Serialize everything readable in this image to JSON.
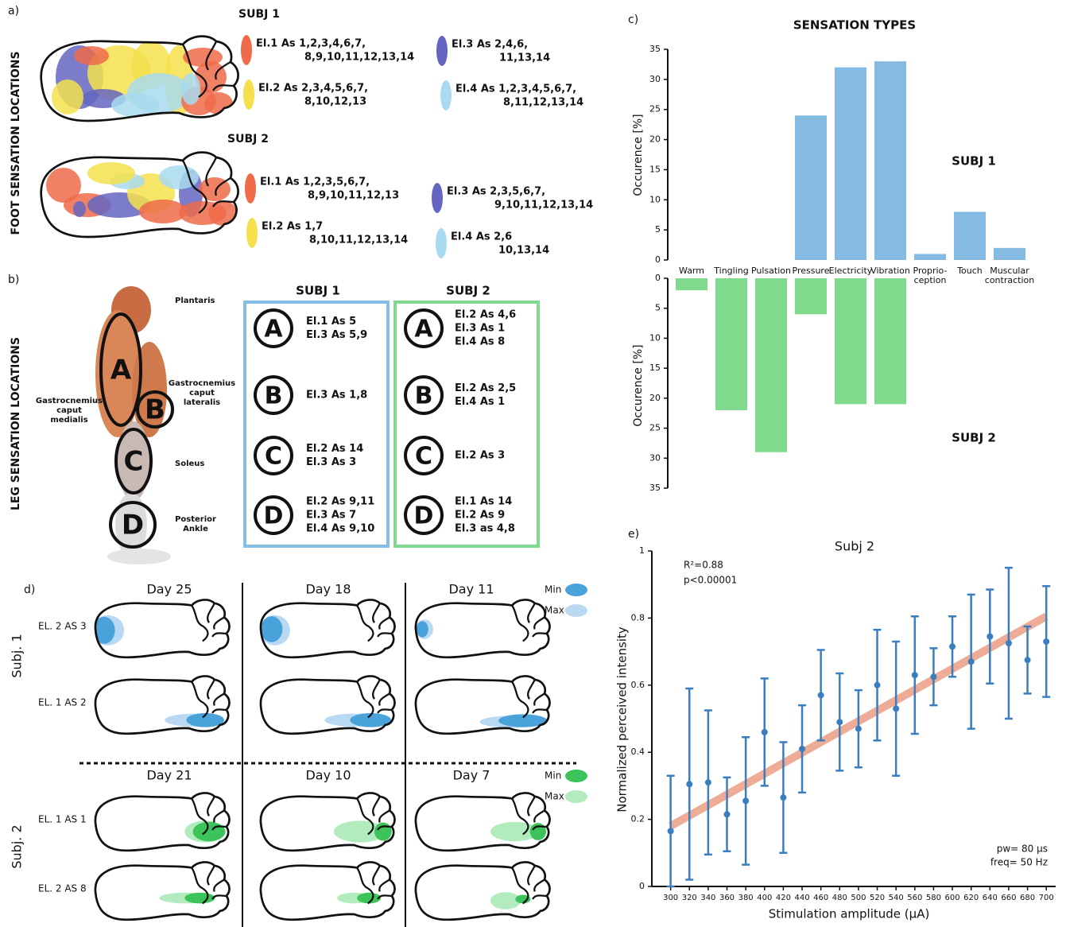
{
  "panel_a": {
    "label": "a)",
    "title": "FOOT SENSATION LOCATIONS",
    "subjects": [
      {
        "name": "SUBJ 1",
        "electrodes": [
          [
            "El.1 As 1,2,3,4,6,7,",
            "8,9,10,11,12,13,14"
          ],
          [
            "El.2 As 2,3,4,5,6,7,",
            "8,10,12,13"
          ],
          [
            "El.3 As 2,4,6,",
            "11,13,14"
          ],
          [
            "El.4 As 1,2,3,4,5,6,7,",
            "8,11,12,13,14"
          ]
        ]
      },
      {
        "name": "SUBJ 2",
        "electrodes": [
          [
            "El.1 As 1,2,3,5,6,7,",
            "8,9,10,11,12,13"
          ],
          [
            "El.2 As 1,7",
            "8,10,11,12,13,14"
          ],
          [
            "El.3 As 2,3,5,6,7,",
            "9,10,11,12,13,14"
          ],
          [
            "El.4 As 2,6",
            "10,13,14"
          ]
        ]
      }
    ]
  },
  "panel_b": {
    "label": "b)",
    "title": "LEG SENSATION LOCATIONS",
    "muscles": [
      [
        "Plantaris"
      ],
      [
        "Gastrocnemius",
        "caput",
        "medialis"
      ],
      [
        "Gastrocnemius",
        "caput",
        "lateralis"
      ],
      [
        "Soleus"
      ],
      [
        "Posterior",
        "Ankle"
      ]
    ],
    "regions": [
      "A",
      "B",
      "C",
      "D"
    ],
    "subjects": [
      {
        "name": "SUBJ 1",
        "regions": [
          {
            "letter": "A",
            "lines": [
              "El.1 As 5",
              "El.3 As 5,9"
            ]
          },
          {
            "letter": "B",
            "lines": [
              "El.3 As 1,8"
            ]
          },
          {
            "letter": "C",
            "lines": [
              "El.2 As 14",
              "El.3 As 3"
            ]
          },
          {
            "letter": "D",
            "lines": [
              "El.2 As 9,11",
              "El.3 As 7",
              "El.4 As 9,10"
            ]
          }
        ]
      },
      {
        "name": "SUBJ 2",
        "regions": [
          {
            "letter": "A",
            "lines": [
              "El.2 As 4,6",
              "El.3 As 1",
              "El.4 As 8"
            ]
          },
          {
            "letter": "B",
            "lines": [
              "El.2 As 2,5",
              "El.4 As 1"
            ]
          },
          {
            "letter": "C",
            "lines": [
              "El.2 As 3"
            ]
          },
          {
            "letter": "D",
            "lines": [
              "El.1 As 14",
              "El.2 As 9",
              "El.3 as 4,8"
            ]
          }
        ]
      }
    ]
  },
  "panel_d": {
    "label": "d)",
    "days": [
      [
        "Day 25",
        "Day 18",
        "Day 11"
      ],
      [
        "Day 21",
        "Day 10",
        "Day 7"
      ]
    ],
    "subjects": [
      "Subj. 1",
      "Subj. 2"
    ],
    "rows": [
      [
        "EL. 2 AS 3",
        "EL. 1 AS 2"
      ],
      [
        "EL. 1 AS 1",
        "EL. 2 AS 8"
      ]
    ],
    "legend": [
      "Min",
      "Max"
    ]
  },
  "chart_data": [
    {
      "type": "mirrored_bar",
      "label": "c)",
      "title": "SENSATION TYPES",
      "ylabel": "Occurence [%]",
      "categories": [
        "Warm",
        "Tingling",
        "Pulsation",
        "Pressure",
        "Electricity",
        "Vibration",
        "Proprio-\nception",
        "Touch",
        "Muscular\ncontraction"
      ],
      "series": [
        {
          "name": "SUBJ 1",
          "color": "#85bbe3",
          "values": [
            0,
            0,
            0,
            24,
            32,
            33,
            1,
            8,
            2
          ]
        },
        {
          "name": "SUBJ 2",
          "color": "#80da8e",
          "values": [
            2,
            22,
            29,
            6,
            21,
            21,
            0,
            0,
            0
          ]
        }
      ],
      "ylim": [
        0,
        35
      ],
      "yticks": [
        0,
        5,
        10,
        15,
        20,
        25,
        30,
        35
      ]
    },
    {
      "type": "scatter",
      "label": "e)",
      "title": "Subj 2",
      "xlabel": "Stimulation amplitude (µA)",
      "ylabel": "Normalized perceived intensity",
      "annotations": [
        "R²=0.88",
        "p<0.00001",
        "pw= 80 µs",
        "freq= 50 Hz"
      ],
      "color": "#3b7ec0",
      "fit_color": "#eb9c84",
      "x": [
        300,
        320,
        340,
        360,
        380,
        400,
        420,
        440,
        460,
        480,
        500,
        520,
        540,
        560,
        580,
        600,
        620,
        640,
        660,
        680,
        700
      ],
      "values": [
        0.165,
        0.305,
        0.31,
        0.215,
        0.255,
        0.46,
        0.265,
        0.41,
        0.57,
        0.49,
        0.47,
        0.6,
        0.53,
        0.63,
        0.625,
        0.715,
        0.67,
        0.745,
        0.725,
        0.675,
        0.73
      ],
      "errors": [
        0.165,
        0.285,
        0.215,
        0.11,
        0.19,
        0.16,
        0.165,
        0.13,
        0.135,
        0.145,
        0.115,
        0.165,
        0.2,
        0.175,
        0.085,
        0.09,
        0.2,
        0.14,
        0.225,
        0.1,
        0.165
      ],
      "fit": {
        "x": [
          300,
          700
        ],
        "y": [
          0.18,
          0.805
        ]
      },
      "xlim": [
        280,
        710
      ],
      "ylim": [
        0,
        1
      ],
      "xticks": [
        300,
        320,
        340,
        360,
        380,
        400,
        420,
        440,
        460,
        480,
        500,
        520,
        540,
        560,
        580,
        600,
        620,
        640,
        660,
        680,
        700
      ],
      "yticks": [
        0,
        0.2,
        0.4,
        0.6,
        0.8,
        1
      ]
    }
  ]
}
